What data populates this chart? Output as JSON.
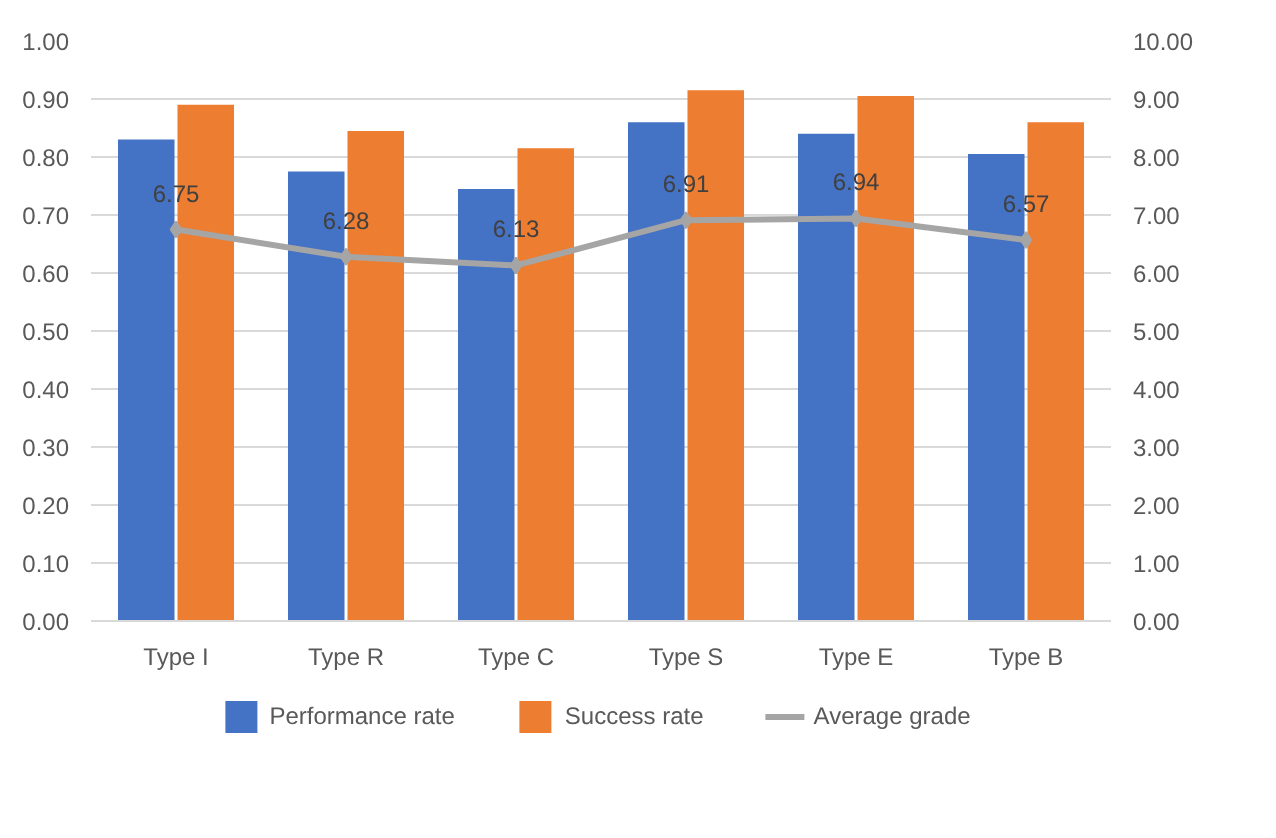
{
  "chart_data": {
    "type": "bar",
    "categories": [
      "Type I",
      "Type R",
      "Type C",
      "Type S",
      "Type E",
      "Type B"
    ],
    "series": [
      {
        "name": "Performance rate",
        "color": "#4472c4",
        "values": [
          0.83,
          0.775,
          0.745,
          0.86,
          0.84,
          0.805
        ]
      },
      {
        "name": "Success rate",
        "color": "#ed7d31",
        "values": [
          0.89,
          0.845,
          0.815,
          0.915,
          0.905,
          0.86
        ]
      },
      {
        "name": "Average grade",
        "color": "#a5a5a5",
        "type": "line",
        "axis": "y2",
        "marker": "diamond",
        "values": [
          6.75,
          6.28,
          6.13,
          6.91,
          6.94,
          6.57
        ],
        "value_labels": [
          "6.75",
          "6.28",
          "6.13",
          "6.91",
          "6.94",
          "6.57"
        ]
      }
    ],
    "ylim": [
      0,
      1
    ],
    "yticks": [
      {
        "value": 0,
        "label": "0.00"
      },
      {
        "value": 0.1,
        "label": "0.10"
      },
      {
        "value": 0.2,
        "label": "0.20"
      },
      {
        "value": 0.3,
        "label": "0.30"
      },
      {
        "value": 0.4,
        "label": "0.40"
      },
      {
        "value": 0.5,
        "label": "0.50"
      },
      {
        "value": 0.6,
        "label": "0.60"
      },
      {
        "value": 0.7,
        "label": "0.70"
      },
      {
        "value": 0.8,
        "label": "0.80"
      },
      {
        "value": 0.9,
        "label": "0.90"
      },
      {
        "value": 1,
        "label": "1.00"
      }
    ],
    "y2lim": [
      0,
      10
    ],
    "y2ticks": [
      {
        "value": 0,
        "label": "0.00"
      },
      {
        "value": 1,
        "label": "1.00"
      },
      {
        "value": 2,
        "label": "2.00"
      },
      {
        "value": 3,
        "label": "3.00"
      },
      {
        "value": 4,
        "label": "4.00"
      },
      {
        "value": 5,
        "label": "5.00"
      },
      {
        "value": 6,
        "label": "6.00"
      },
      {
        "value": 7,
        "label": "7.00"
      },
      {
        "value": 8,
        "label": "8.00"
      },
      {
        "value": 9,
        "label": "9.00"
      },
      {
        "value": 10,
        "label": "10.00"
      }
    ],
    "grid": "y",
    "legend": "bottom"
  }
}
